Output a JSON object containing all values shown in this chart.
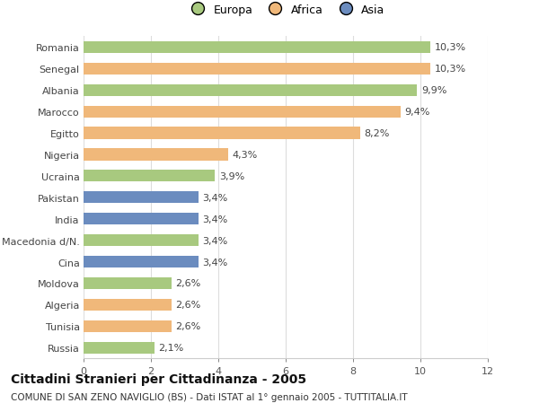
{
  "countries": [
    "Romania",
    "Senegal",
    "Albania",
    "Marocco",
    "Egitto",
    "Nigeria",
    "Ucraina",
    "Pakistan",
    "India",
    "Macedonia d/N.",
    "Cina",
    "Moldova",
    "Algeria",
    "Tunisia",
    "Russia"
  ],
  "values": [
    10.3,
    10.3,
    9.9,
    9.4,
    8.2,
    4.3,
    3.9,
    3.4,
    3.4,
    3.4,
    3.4,
    2.6,
    2.6,
    2.6,
    2.1
  ],
  "labels": [
    "10,3%",
    "10,3%",
    "9,9%",
    "9,4%",
    "8,2%",
    "4,3%",
    "3,9%",
    "3,4%",
    "3,4%",
    "3,4%",
    "3,4%",
    "2,6%",
    "2,6%",
    "2,6%",
    "2,1%"
  ],
  "continents": [
    "Europa",
    "Africa",
    "Europa",
    "Africa",
    "Africa",
    "Africa",
    "Europa",
    "Asia",
    "Asia",
    "Europa",
    "Asia",
    "Europa",
    "Africa",
    "Africa",
    "Europa"
  ],
  "continent_colors": {
    "Europa": "#a8c97f",
    "Africa": "#f0b87a",
    "Asia": "#6b8cbf"
  },
  "legend_labels": [
    "Europa",
    "Africa",
    "Asia"
  ],
  "legend_colors": [
    "#a8c97f",
    "#f0b87a",
    "#6b8cbf"
  ],
  "title": "Cittadini Stranieri per Cittadinanza - 2005",
  "subtitle": "COMUNE DI SAN ZENO NAVIGLIO (BS) - Dati ISTAT al 1° gennaio 2005 - TUTTITALIA.IT",
  "xlim": [
    0,
    12
  ],
  "xticks": [
    0,
    2,
    4,
    6,
    8,
    10,
    12
  ],
  "background_color": "#ffffff",
  "grid_color": "#dddddd",
  "bar_height": 0.55,
  "title_fontsize": 10,
  "subtitle_fontsize": 7.5,
  "label_fontsize": 8,
  "tick_fontsize": 8,
  "legend_fontsize": 9
}
